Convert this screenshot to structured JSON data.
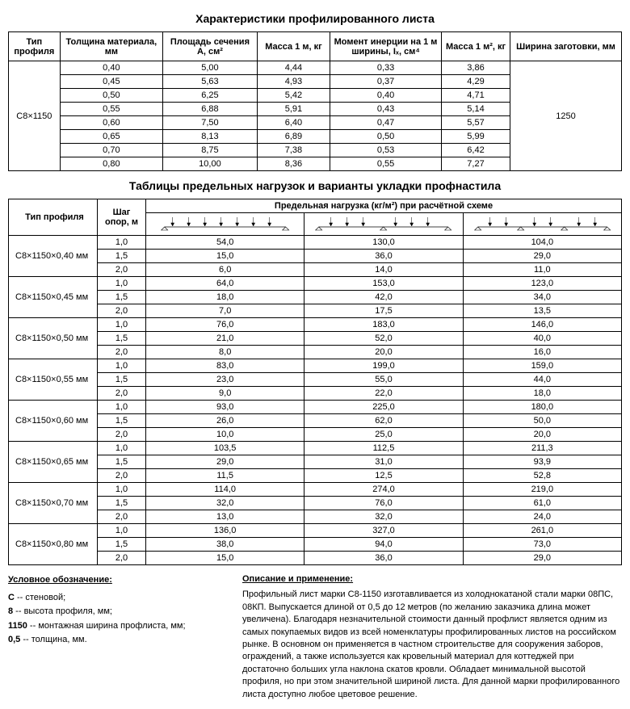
{
  "table1": {
    "title": "Характеристики профилированного листа",
    "headers": [
      "Тип профиля",
      "Толщина материала, мм",
      "Площадь сечения А, см²",
      "Масса 1 м, кг",
      "Момент инерции на 1 м ширины, Iₓ, см⁴",
      "Масса 1 м², кг",
      "Ширина заготовки, мм"
    ],
    "profile": "С8×1150",
    "blank_width": "1250",
    "rows": [
      [
        "0,40",
        "5,00",
        "4,44",
        "0,33",
        "3,86"
      ],
      [
        "0,45",
        "5,63",
        "4,93",
        "0,37",
        "4,29"
      ],
      [
        "0,50",
        "6,25",
        "5,42",
        "0,40",
        "4,71"
      ],
      [
        "0,55",
        "6,88",
        "5,91",
        "0,43",
        "5,14"
      ],
      [
        "0,60",
        "7,50",
        "6,40",
        "0,47",
        "5,57"
      ],
      [
        "0,65",
        "8,13",
        "6,89",
        "0,50",
        "5,99"
      ],
      [
        "0,70",
        "8,75",
        "7,38",
        "0,53",
        "6,42"
      ],
      [
        "0,80",
        "10,00",
        "8,36",
        "0,55",
        "7,27"
      ]
    ]
  },
  "table2": {
    "title": "Таблицы предельных нагрузок и варианты укладки профнастила",
    "headers": [
      "Тип профиля",
      "Шаг опор, м",
      "Предельная нагрузка (кг/м²) при расчётной схеме"
    ],
    "groups": [
      {
        "profile": "С8×1150×0,40 мм",
        "rows": [
          [
            "1,0",
            "54,0",
            "130,0",
            "104,0"
          ],
          [
            "1,5",
            "15,0",
            "36,0",
            "29,0"
          ],
          [
            "2,0",
            "6,0",
            "14,0",
            "11,0"
          ]
        ]
      },
      {
        "profile": "С8×1150×0,45 мм",
        "rows": [
          [
            "1,0",
            "64,0",
            "153,0",
            "123,0"
          ],
          [
            "1,5",
            "18,0",
            "42,0",
            "34,0"
          ],
          [
            "2,0",
            "7,0",
            "17,5",
            "13,5"
          ]
        ]
      },
      {
        "profile": "С8×1150×0,50 мм",
        "rows": [
          [
            "1,0",
            "76,0",
            "183,0",
            "146,0"
          ],
          [
            "1,5",
            "21,0",
            "52,0",
            "40,0"
          ],
          [
            "2,0",
            "8,0",
            "20,0",
            "16,0"
          ]
        ]
      },
      {
        "profile": "С8×1150×0,55 мм",
        "rows": [
          [
            "1,0",
            "83,0",
            "199,0",
            "159,0"
          ],
          [
            "1,5",
            "23,0",
            "55,0",
            "44,0"
          ],
          [
            "2,0",
            "9,0",
            "22,0",
            "18,0"
          ]
        ]
      },
      {
        "profile": "С8×1150×0,60 мм",
        "rows": [
          [
            "1,0",
            "93,0",
            "225,0",
            "180,0"
          ],
          [
            "1,5",
            "26,0",
            "62,0",
            "50,0"
          ],
          [
            "2,0",
            "10,0",
            "25,0",
            "20,0"
          ]
        ]
      },
      {
        "profile": "С8×1150×0,65 мм",
        "rows": [
          [
            "1,0",
            "103,5",
            "112,5",
            "211,3"
          ],
          [
            "1,5",
            "29,0",
            "31,0",
            "93,9"
          ],
          [
            "2,0",
            "11,5",
            "12,5",
            "52,8"
          ]
        ]
      },
      {
        "profile": "С8×1150×0,70 мм",
        "rows": [
          [
            "1,0",
            "114,0",
            "274,0",
            "219,0"
          ],
          [
            "1,5",
            "32,0",
            "76,0",
            "61,0"
          ],
          [
            "2,0",
            "13,0",
            "32,0",
            "24,0"
          ]
        ]
      },
      {
        "profile": "С8×1150×0,80 мм",
        "rows": [
          [
            "1,0",
            "136,0",
            "327,0",
            "261,0"
          ],
          [
            "1,5",
            "38,0",
            "94,0",
            "73,0"
          ],
          [
            "2,0",
            "15,0",
            "36,0",
            "29,0"
          ]
        ]
      }
    ]
  },
  "footer": {
    "left_title": "Условное обозначение:",
    "left_lines": [
      "С -- стеновой;",
      "8 -- высота профиля, мм;",
      "1150 -- монтажная ширина профлиста, мм;",
      "0,5 -- толщина, мм."
    ],
    "right_title": "Описание и применение:",
    "right_text": "Профильный лист марки С8-1150 изготавливается из холоднокатаной стали марки 08ПС, 08КП. Выпускается длиной от 0,5 до 12 метров (по желанию заказчика длина может увеличена). Благодаря незначительной стоимости данный профлист является одним из самых покупаемых видов из всей номенклатуры профилированных листов на российском рынке. В основном он применяется в частном строительстве для сооружения заборов, ограждений, а также используется как кровельный материал для коттеджей при достаточно больших угла наклона скатов кровли. Обладает минимальной высотой профиля, но при этом значительной шириной листа. Для данной марки профилированного листа доступно любое цветовое решение."
  }
}
